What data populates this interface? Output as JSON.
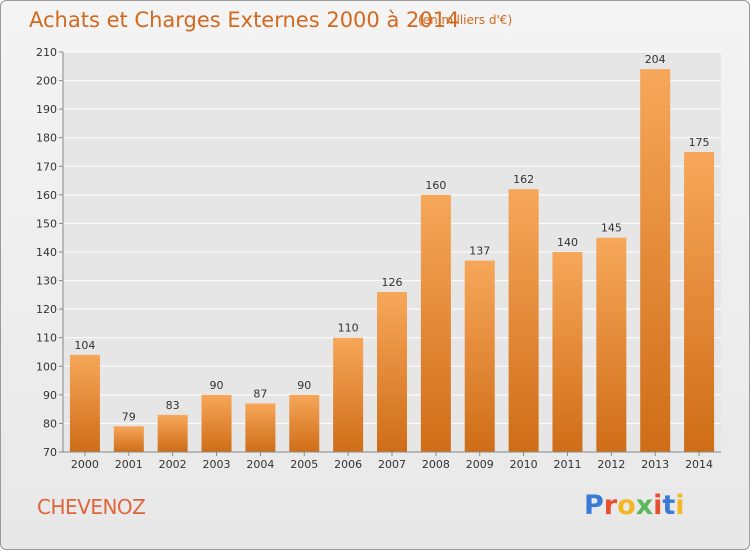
{
  "header": {
    "title": "Achats et Charges Externes 2000 à 2014",
    "subtitle": "(en milliers d'€)"
  },
  "footer": {
    "commune": "CHEVENOZ",
    "logo_letters": [
      "P",
      "r",
      "o",
      "x",
      "i",
      "t",
      "i"
    ]
  },
  "colors": {
    "title": "#d2691e",
    "bar_top": "#f7a75a",
    "bar_bottom": "#cf6d17",
    "logo": [
      "#3a7bd5",
      "#e94e2f",
      "#f2b824",
      "#5cb85c",
      "#e94e2f",
      "#3a7bd5",
      "#f2b824"
    ]
  },
  "chart_data": {
    "type": "bar",
    "title": "Achats et Charges Externes 2000 à 2014",
    "subtitle": "(en milliers d'€)",
    "categories": [
      "2000",
      "2001",
      "2002",
      "2003",
      "2004",
      "2005",
      "2006",
      "2007",
      "2008",
      "2009",
      "2010",
      "2011",
      "2012",
      "2013",
      "2014"
    ],
    "values": [
      104,
      79,
      83,
      90,
      87,
      90,
      110,
      126,
      160,
      137,
      162,
      140,
      145,
      204,
      175
    ],
    "ylim": [
      70,
      210
    ],
    "yticks": [
      70,
      80,
      90,
      100,
      110,
      120,
      130,
      140,
      150,
      160,
      170,
      180,
      190,
      200,
      210
    ],
    "grid": true,
    "data_labels": true
  }
}
